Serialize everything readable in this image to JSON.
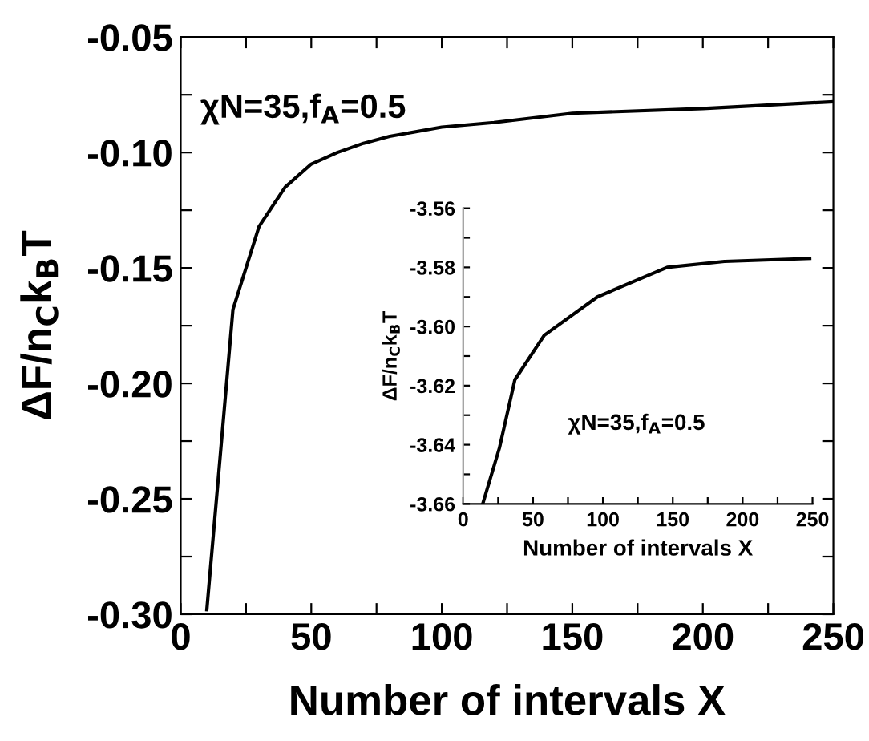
{
  "chart_data": [
    {
      "type": "line",
      "xlabel": "Number of intervals X",
      "ylabel": "ΔF/n$_{C}$k$_{B}$T",
      "annotations": [
        "χN=35,f$_{A}$=0.5"
      ],
      "x": [
        10,
        20,
        30,
        40,
        50,
        60,
        70,
        80,
        100,
        120,
        150,
        200,
        250
      ],
      "series": [
        {
          "color": "#000000",
          "values": [
            -0.298,
            -0.168,
            -0.132,
            -0.115,
            -0.105,
            -0.1,
            -0.096,
            -0.093,
            -0.089,
            -0.087,
            -0.083,
            -0.081,
            -0.078
          ]
        }
      ],
      "xlim": [
        0,
        250
      ],
      "xticks": [
        0,
        {
          "value": 25,
          "label": null
        },
        50,
        {
          "value": 75,
          "label": null
        },
        100,
        {
          "value": 125,
          "label": null
        },
        150,
        {
          "value": 175,
          "label": null
        },
        200,
        {
          "value": 225,
          "label": null
        },
        250
      ],
      "ylim": [
        -0.3,
        -0.05
      ],
      "yticks": [
        {
          "value": -0.3,
          "label": "-0.30"
        },
        {
          "value": -0.275,
          "label": null
        },
        -0.25,
        {
          "value": -0.225,
          "label": null
        },
        {
          "value": -0.2,
          "label": "-0.20"
        },
        {
          "value": -0.175,
          "label": null
        },
        -0.15,
        {
          "value": -0.125,
          "label": null
        },
        {
          "value": -0.1,
          "label": "-0.10"
        },
        {
          "value": -0.075,
          "label": null
        },
        -0.05
      ],
      "grid": false,
      "legend": false
    },
    {
      "type": "line",
      "xlabel": "Number of intervals X",
      "ylabel": "ΔF/n$_{C}$k$_{B}$T",
      "annotations": [
        "χN=35,f$_{A}$=0.5"
      ],
      "x": [
        14,
        26,
        37,
        58,
        96,
        146,
        187,
        248
      ],
      "series": [
        {
          "color": "#000000",
          "values": [
            -3.66,
            -3.641,
            -3.618,
            -3.603,
            -3.59,
            -3.58,
            -3.578,
            -3.577
          ]
        }
      ],
      "xlim": [
        0,
        250
      ],
      "xticks": [
        0,
        {
          "value": 25,
          "label": null
        },
        50,
        {
          "value": 75,
          "label": null
        },
        100,
        {
          "value": 125,
          "label": null
        },
        150,
        {
          "value": 175,
          "label": null
        },
        200,
        {
          "value": 225,
          "label": null
        },
        250
      ],
      "ylim": [
        -3.66,
        -3.56
      ],
      "yticks": [
        -3.66,
        {
          "value": -3.65,
          "label": null
        },
        -3.64,
        {
          "value": -3.63,
          "label": null
        },
        -3.62,
        {
          "value": -3.61,
          "label": null
        },
        {
          "value": -3.6,
          "label": "-3.60"
        },
        {
          "value": -3.59,
          "label": null
        },
        -3.58,
        {
          "value": -3.57,
          "label": null
        },
        -3.56
      ],
      "grid": false,
      "legend": false
    }
  ]
}
